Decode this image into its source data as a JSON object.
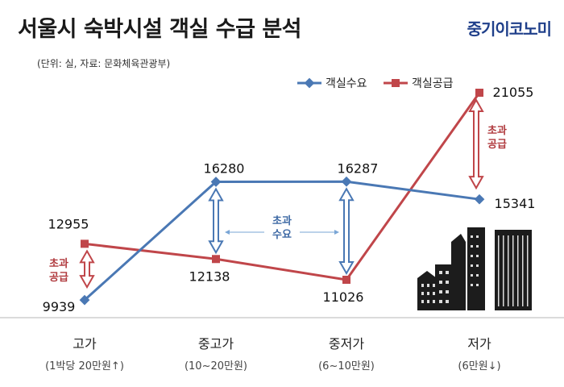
{
  "header": {
    "title": "서울시 숙박시설 객실 수급 분석",
    "brand": "중기이코노미",
    "unit_note": "(단위: 실, 자료: 문화체육관광부)"
  },
  "colors": {
    "demand": "#4a78b4",
    "supply": "#c0464a"
  },
  "annotations": {
    "left_gap": [
      "초과",
      "공급"
    ],
    "middle_gap": [
      "초과",
      "수요"
    ],
    "right_gap": [
      "초과",
      "공급"
    ]
  },
  "chart_data": {
    "type": "line",
    "categories": [
      "고가",
      "중고가",
      "중저가",
      "저가"
    ],
    "category_sublabels": [
      "(1박당 20만원↑)",
      "(10~20만원)",
      "(6~10만원)",
      "(6만원↓)"
    ],
    "series": [
      {
        "name": "객실수요",
        "values": [
          9939,
          16280,
          16287,
          15341
        ],
        "color": "#4a78b4",
        "marker": "diamond"
      },
      {
        "name": "객실공급",
        "values": [
          12955,
          12138,
          11026,
          21055
        ],
        "color": "#c0464a",
        "marker": "square"
      }
    ],
    "legend": "top-right",
    "grid": false
  }
}
